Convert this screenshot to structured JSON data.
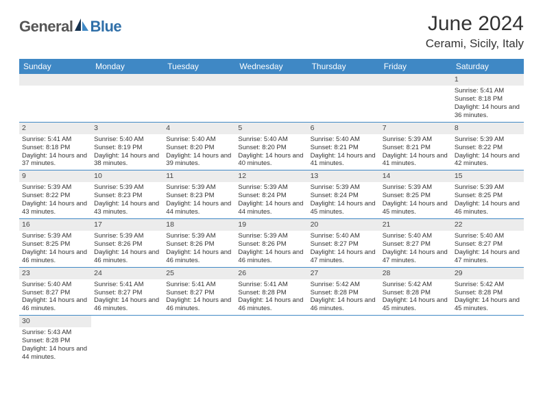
{
  "brand": {
    "part1": "General",
    "part2": "Blue"
  },
  "title": "June 2024",
  "location": "Cerami, Sicily, Italy",
  "colors": {
    "header_bg": "#3f88c5",
    "header_text": "#ffffff",
    "daynum_bg": "#ececec",
    "rule": "#3f88c5",
    "brand_gray": "#555555",
    "brand_blue": "#2f6fa8"
  },
  "day_labels": [
    "Sunday",
    "Monday",
    "Tuesday",
    "Wednesday",
    "Thursday",
    "Friday",
    "Saturday"
  ],
  "weeks": [
    [
      null,
      null,
      null,
      null,
      null,
      null,
      {
        "n": "1",
        "sr": "5:41 AM",
        "ss": "8:18 PM",
        "dl": "14 hours and 36 minutes."
      }
    ],
    [
      {
        "n": "2",
        "sr": "5:41 AM",
        "ss": "8:18 PM",
        "dl": "14 hours and 37 minutes."
      },
      {
        "n": "3",
        "sr": "5:40 AM",
        "ss": "8:19 PM",
        "dl": "14 hours and 38 minutes."
      },
      {
        "n": "4",
        "sr": "5:40 AM",
        "ss": "8:20 PM",
        "dl": "14 hours and 39 minutes."
      },
      {
        "n": "5",
        "sr": "5:40 AM",
        "ss": "8:20 PM",
        "dl": "14 hours and 40 minutes."
      },
      {
        "n": "6",
        "sr": "5:40 AM",
        "ss": "8:21 PM",
        "dl": "14 hours and 41 minutes."
      },
      {
        "n": "7",
        "sr": "5:39 AM",
        "ss": "8:21 PM",
        "dl": "14 hours and 41 minutes."
      },
      {
        "n": "8",
        "sr": "5:39 AM",
        "ss": "8:22 PM",
        "dl": "14 hours and 42 minutes."
      }
    ],
    [
      {
        "n": "9",
        "sr": "5:39 AM",
        "ss": "8:22 PM",
        "dl": "14 hours and 43 minutes."
      },
      {
        "n": "10",
        "sr": "5:39 AM",
        "ss": "8:23 PM",
        "dl": "14 hours and 43 minutes."
      },
      {
        "n": "11",
        "sr": "5:39 AM",
        "ss": "8:23 PM",
        "dl": "14 hours and 44 minutes."
      },
      {
        "n": "12",
        "sr": "5:39 AM",
        "ss": "8:24 PM",
        "dl": "14 hours and 44 minutes."
      },
      {
        "n": "13",
        "sr": "5:39 AM",
        "ss": "8:24 PM",
        "dl": "14 hours and 45 minutes."
      },
      {
        "n": "14",
        "sr": "5:39 AM",
        "ss": "8:25 PM",
        "dl": "14 hours and 45 minutes."
      },
      {
        "n": "15",
        "sr": "5:39 AM",
        "ss": "8:25 PM",
        "dl": "14 hours and 46 minutes."
      }
    ],
    [
      {
        "n": "16",
        "sr": "5:39 AM",
        "ss": "8:25 PM",
        "dl": "14 hours and 46 minutes."
      },
      {
        "n": "17",
        "sr": "5:39 AM",
        "ss": "8:26 PM",
        "dl": "14 hours and 46 minutes."
      },
      {
        "n": "18",
        "sr": "5:39 AM",
        "ss": "8:26 PM",
        "dl": "14 hours and 46 minutes."
      },
      {
        "n": "19",
        "sr": "5:39 AM",
        "ss": "8:26 PM",
        "dl": "14 hours and 46 minutes."
      },
      {
        "n": "20",
        "sr": "5:40 AM",
        "ss": "8:27 PM",
        "dl": "14 hours and 47 minutes."
      },
      {
        "n": "21",
        "sr": "5:40 AM",
        "ss": "8:27 PM",
        "dl": "14 hours and 47 minutes."
      },
      {
        "n": "22",
        "sr": "5:40 AM",
        "ss": "8:27 PM",
        "dl": "14 hours and 47 minutes."
      }
    ],
    [
      {
        "n": "23",
        "sr": "5:40 AM",
        "ss": "8:27 PM",
        "dl": "14 hours and 46 minutes."
      },
      {
        "n": "24",
        "sr": "5:41 AM",
        "ss": "8:27 PM",
        "dl": "14 hours and 46 minutes."
      },
      {
        "n": "25",
        "sr": "5:41 AM",
        "ss": "8:27 PM",
        "dl": "14 hours and 46 minutes."
      },
      {
        "n": "26",
        "sr": "5:41 AM",
        "ss": "8:28 PM",
        "dl": "14 hours and 46 minutes."
      },
      {
        "n": "27",
        "sr": "5:42 AM",
        "ss": "8:28 PM",
        "dl": "14 hours and 46 minutes."
      },
      {
        "n": "28",
        "sr": "5:42 AM",
        "ss": "8:28 PM",
        "dl": "14 hours and 45 minutes."
      },
      {
        "n": "29",
        "sr": "5:42 AM",
        "ss": "8:28 PM",
        "dl": "14 hours and 45 minutes."
      }
    ],
    [
      {
        "n": "30",
        "sr": "5:43 AM",
        "ss": "8:28 PM",
        "dl": "14 hours and 44 minutes."
      },
      null,
      null,
      null,
      null,
      null,
      null
    ]
  ],
  "labels": {
    "sunrise": "Sunrise:",
    "sunset": "Sunset:",
    "daylight": "Daylight:"
  }
}
